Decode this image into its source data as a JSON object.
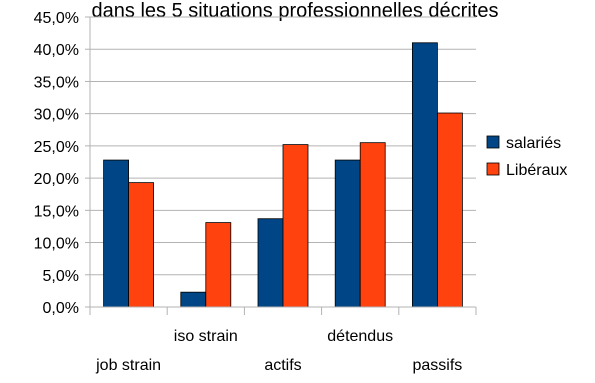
{
  "chart_data": {
    "type": "bar",
    "title": "dans les 5 situations professionnelles décrites",
    "xlabel": "",
    "ylabel": "",
    "categories": [
      "job strain",
      "iso strain",
      "actifs",
      "détendus",
      "passifs"
    ],
    "series": [
      {
        "name": "salariés",
        "values": [
          22.8,
          2.3,
          13.7,
          22.8,
          41.0
        ],
        "color": "#004586"
      },
      {
        "name": "Libéraux",
        "values": [
          19.3,
          13.1,
          25.2,
          25.5,
          30.1
        ],
        "color": "#ff420e"
      }
    ],
    "ylim": [
      0,
      45
    ],
    "y_ticks": [
      "0,0%",
      "5,0%",
      "10,0%",
      "15,0%",
      "20,0%",
      "25,0%",
      "30,0%",
      "35,0%",
      "40,0%",
      "45,0%"
    ],
    "grid": true,
    "grid_axis": "y",
    "legend_position": "right",
    "category_labels_staggered": true
  }
}
